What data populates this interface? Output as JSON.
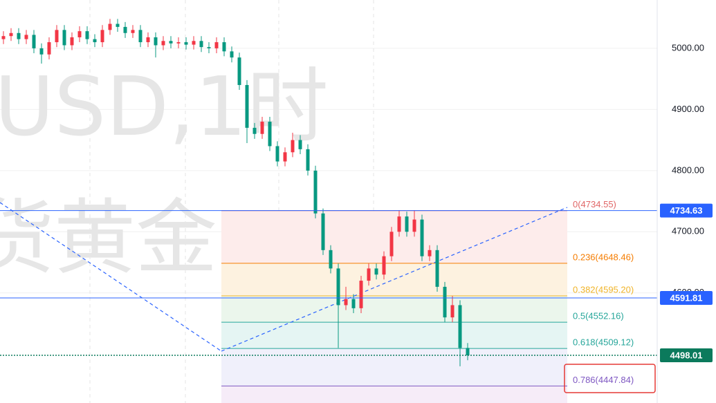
{
  "watermark": [
    "USD,1时",
    "货黄金"
  ],
  "price_axis": {
    "ylim": [
      4420,
      5079
    ],
    "ticks": [
      {
        "value": 5000,
        "label": "5000.00"
      },
      {
        "value": 4900,
        "label": "4900.00"
      },
      {
        "value": 4800,
        "label": "4800.00"
      },
      {
        "value": 4700,
        "label": "4700.00"
      },
      {
        "value": 4600,
        "label": "4600.00"
      }
    ]
  },
  "fib_levels": [
    {
      "price": 4734.55,
      "label": "0(4734.55)",
      "color": "#e06666",
      "fill": "#fdeceb"
    },
    {
      "price": 4648.46,
      "label": "0.236(4648.46)",
      "color": "#f57c00",
      "fill": "#fdf2e0"
    },
    {
      "price": 4595.2,
      "label": "0.382(4595.20)",
      "color": "#f0b429",
      "fill": "#ebf6ec"
    },
    {
      "price": 4552.16,
      "label": "0.5(4552.16)",
      "color": "#26a69a",
      "fill": "#e5f5f3"
    },
    {
      "price": 4509.12,
      "label": "0.618(4509.12)",
      "color": "#26a69a",
      "fill": "#f0f0fb"
    },
    {
      "price": 4447.84,
      "label": "0.786(4447.84)",
      "color": "#7e57c2",
      "fill": "#f6ecf8"
    }
  ],
  "price_tags": [
    {
      "value": 4734.63,
      "label": "4734.63",
      "color": "#2962ff"
    },
    {
      "value": 4591.81,
      "label": "4591.81",
      "color": "#2962ff"
    },
    {
      "value": 4498.01,
      "label": "4498.01",
      "color": "#0b7a5c"
    }
  ],
  "colors": {
    "up": "#f23645",
    "down": "#089981"
  },
  "candles": {
    "open": [
      5015,
      5020,
      5025,
      5015,
      5022,
      5000,
      4990,
      5010,
      5030,
      5005,
      5018,
      5028,
      5015,
      5010,
      5030,
      5040,
      5035,
      5025,
      5030,
      5010,
      5018,
      5005,
      5012,
      5008,
      5010,
      5006,
      5012,
      5002,
      5000,
      5010,
      4995,
      4985,
      4940,
      4870,
      4860,
      4880,
      4840,
      4815,
      4830,
      4850,
      4835,
      4800,
      4730,
      4670,
      4640,
      4580,
      4590,
      4575,
      4620,
      4640,
      4630,
      4660,
      4700,
      4725,
      4700,
      4720,
      4660,
      4670,
      4610,
      4560,
      4580,
      4510
    ],
    "high": [
      5028,
      5033,
      5033,
      5030,
      5030,
      5008,
      5018,
      5038,
      5038,
      5026,
      5036,
      5036,
      5023,
      5038,
      5048,
      5048,
      5043,
      5038,
      5038,
      5026,
      5026,
      5020,
      5020,
      5018,
      5018,
      5020,
      5020,
      5010,
      5018,
      5018,
      5003,
      4993,
      4948,
      4878,
      4888,
      4888,
      4848,
      4838,
      4862,
      4858,
      4843,
      4808,
      4738,
      4678,
      4648,
      4610,
      4598,
      4628,
      4648,
      4648,
      4668,
      4708,
      4735,
      4733,
      4735,
      4728,
      4678,
      4678,
      4618,
      4595,
      4588,
      4518
    ],
    "low": [
      5007,
      5012,
      5007,
      5007,
      4992,
      4975,
      4982,
      5002,
      4997,
      4997,
      5010,
      5007,
      5002,
      5002,
      5022,
      5027,
      5017,
      5017,
      5002,
      5002,
      4985,
      4997,
      5000,
      5000,
      4998,
      4998,
      4994,
      4992,
      4992,
      4987,
      4977,
      4932,
      4845,
      4852,
      4852,
      4832,
      4807,
      4807,
      4822,
      4827,
      4792,
      4722,
      4662,
      4632,
      4510,
      4572,
      4567,
      4567,
      4612,
      4622,
      4622,
      4652,
      4692,
      4692,
      4692,
      4652,
      4652,
      4602,
      4552,
      4552,
      4480,
      4490
    ],
    "close": [
      5020,
      5025,
      5015,
      5022,
      5000,
      4990,
      5010,
      5030,
      5005,
      5018,
      5028,
      5015,
      5010,
      5030,
      5040,
      5035,
      5025,
      5030,
      5010,
      5018,
      5005,
      5012,
      5008,
      5010,
      5006,
      5012,
      5002,
      5000,
      5010,
      4995,
      4985,
      4940,
      4870,
      4860,
      4880,
      4840,
      4815,
      4830,
      4850,
      4835,
      4800,
      4730,
      4670,
      4640,
      4580,
      4590,
      4575,
      4620,
      4640,
      4630,
      4660,
      4700,
      4725,
      4700,
      4720,
      4660,
      4670,
      4610,
      4560,
      4580,
      4510,
      4498
    ]
  }
}
